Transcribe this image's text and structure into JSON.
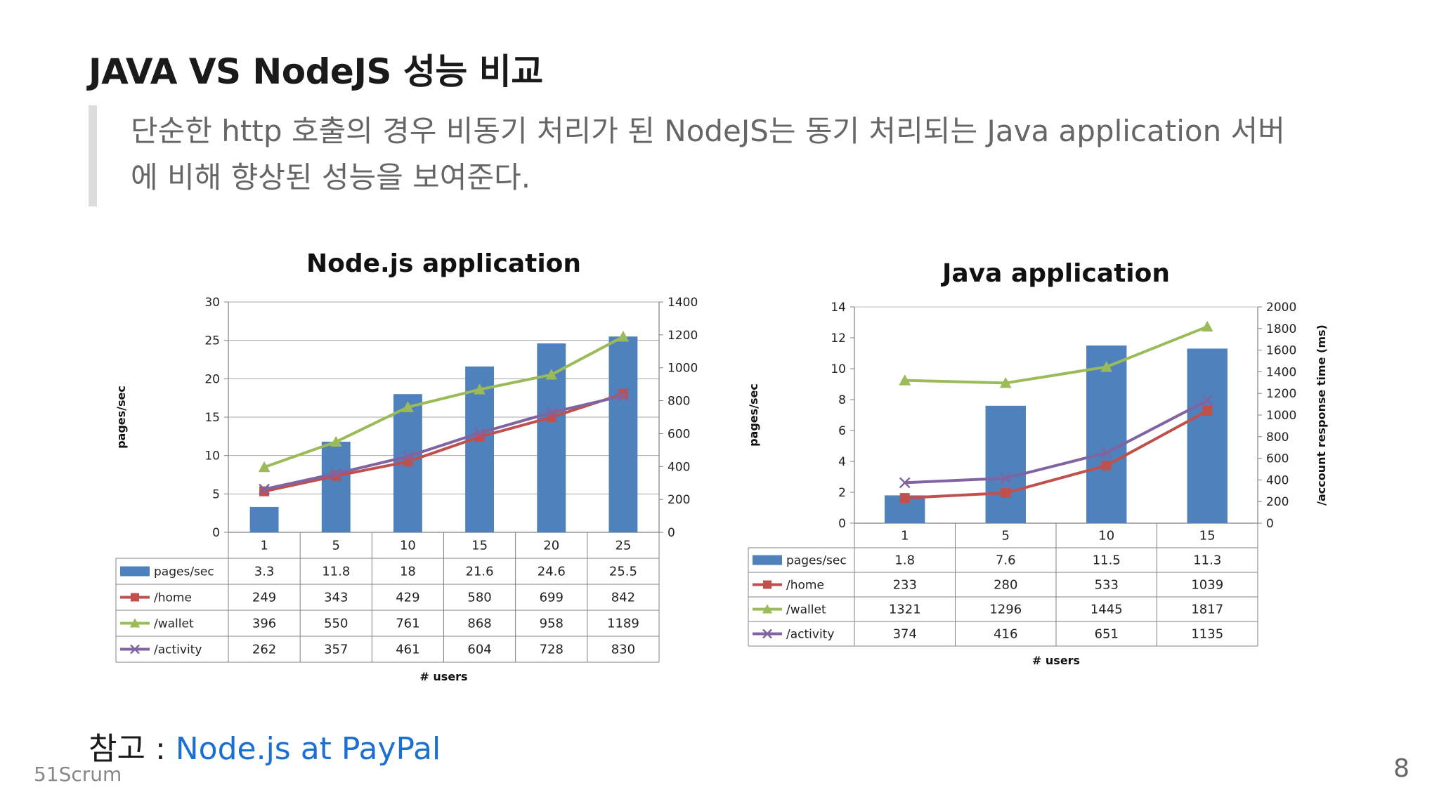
{
  "slide": {
    "title": "JAVA VS NodeJS 성능 비교",
    "quote_line1": "단순한 http 호출의 경우 비동기 처리가 된 NodeJS는 동기 처리되는 Java application 서버",
    "quote_line2": "에 비해 향상된 성능을 보여준다.",
    "reference_label": "참고 : ",
    "reference_link": "Node.js at PayPal",
    "brand": "51Scrum",
    "page_number": "8"
  },
  "colors": {
    "bar": "#4f81bd",
    "home": "#c0504d",
    "wallet": "#9bbb59",
    "activity": "#8064a2",
    "grid": "#a6a6a6"
  },
  "chart_data": [
    {
      "type": "bar",
      "title": "Node.js application",
      "categories": [
        "1",
        "5",
        "10",
        "15",
        "20",
        "25"
      ],
      "xlabel": "# users",
      "ylabel": "pages/sec",
      "y2label": "",
      "ylim": [
        0,
        30
      ],
      "yticks": [
        0,
        5,
        10,
        15,
        20,
        25,
        30
      ],
      "y2lim": [
        0,
        1400
      ],
      "y2ticks": [
        0,
        200,
        400,
        600,
        800,
        1000,
        1200,
        1400
      ],
      "grid": true,
      "legend": "data-table",
      "series": [
        {
          "name": "pages/sec",
          "type": "bar",
          "axis": "left",
          "marker": "rect",
          "color": "#4f81bd",
          "values": [
            3.3,
            11.8,
            18,
            21.6,
            24.6,
            25.5
          ]
        },
        {
          "name": "/home",
          "type": "line",
          "axis": "right",
          "marker": "square",
          "color": "#c0504d",
          "values": [
            249,
            343,
            429,
            580,
            699,
            842
          ]
        },
        {
          "name": "/wallet",
          "type": "line",
          "axis": "right",
          "marker": "triangle",
          "color": "#9bbb59",
          "values": [
            396,
            550,
            761,
            868,
            958,
            1189
          ]
        },
        {
          "name": "/activity",
          "type": "line",
          "axis": "right",
          "marker": "x",
          "color": "#8064a2",
          "values": [
            262,
            357,
            461,
            604,
            728,
            830
          ]
        }
      ]
    },
    {
      "type": "bar",
      "title": "Java application",
      "categories": [
        "1",
        "5",
        "10",
        "15"
      ],
      "xlabel": "# users",
      "ylabel": "pages/sec",
      "y2label": "/account response time (ms)",
      "ylim": [
        0,
        14
      ],
      "yticks": [
        0,
        2,
        4,
        6,
        8,
        10,
        12,
        14
      ],
      "y2lim": [
        0,
        2000
      ],
      "y2ticks": [
        0,
        200,
        400,
        600,
        800,
        1000,
        1200,
        1400,
        1600,
        1800,
        2000
      ],
      "grid": false,
      "legend": "data-table",
      "series": [
        {
          "name": "pages/sec",
          "type": "bar",
          "axis": "left",
          "marker": "rect",
          "color": "#4f81bd",
          "values": [
            1.8,
            7.6,
            11.5,
            11.3
          ]
        },
        {
          "name": "/home",
          "type": "line",
          "axis": "right",
          "marker": "square",
          "color": "#c0504d",
          "values": [
            233,
            280,
            533,
            1039
          ]
        },
        {
          "name": "/wallet",
          "type": "line",
          "axis": "right",
          "marker": "triangle",
          "color": "#9bbb59",
          "values": [
            1321,
            1296,
            1445,
            1817
          ]
        },
        {
          "name": "/activity",
          "type": "line",
          "axis": "right",
          "marker": "x",
          "color": "#8064a2",
          "values": [
            374,
            416,
            651,
            1135
          ]
        }
      ]
    }
  ]
}
